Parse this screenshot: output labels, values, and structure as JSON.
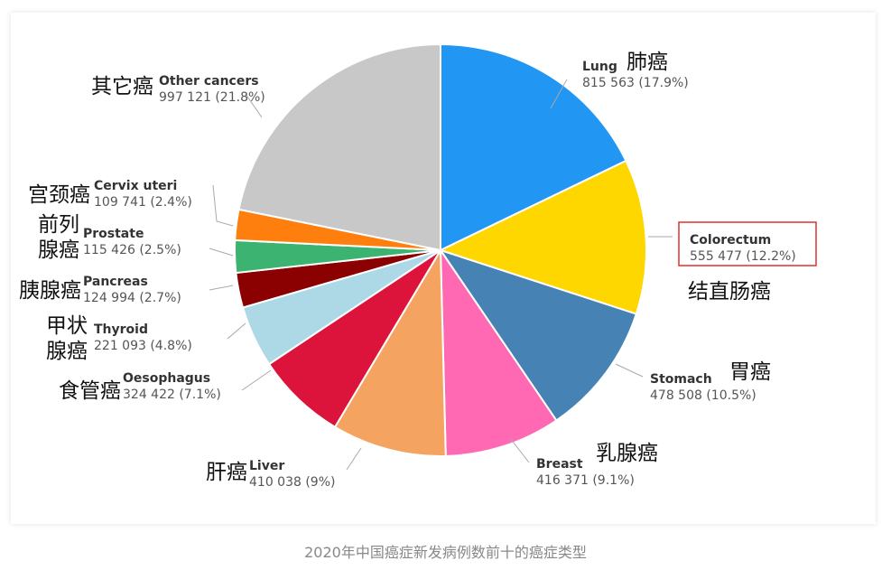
{
  "caption": "2020年中国癌症新发病例数前十的癌症类型",
  "colors": {
    "highlight_box": "#e03030",
    "highlight_text": "#e03030",
    "leader": "#a9a9a9"
  },
  "chart_data": {
    "type": "pie",
    "slices": [
      {
        "label": "Lung",
        "cn": "肺癌",
        "value": 815563,
        "value_text": "815 563 (17.9%)",
        "percent": 17.9,
        "color": "#2196f3"
      },
      {
        "label": "Colorectum",
        "cn": "结直肠癌",
        "value": 555477,
        "value_text": "555 477 (12.2%)",
        "percent": 12.2,
        "color": "#ffd700",
        "highlight": true
      },
      {
        "label": "Stomach",
        "cn": "胃癌",
        "value": 478508,
        "value_text": "478 508 (10.5%)",
        "percent": 10.5,
        "color": "#4682b4"
      },
      {
        "label": "Breast",
        "cn": "乳腺癌",
        "value": 416371,
        "value_text": "416 371 (9.1%)",
        "percent": 9.1,
        "color": "#ff69b4"
      },
      {
        "label": "Liver",
        "cn": "肝癌",
        "value": 410038,
        "value_text": "410 038 (9%)",
        "percent": 9.0,
        "color": "#f4a460"
      },
      {
        "label": "Oesophagus",
        "cn": "食管癌",
        "value": 324422,
        "value_text": "324 422 (7.1%)",
        "percent": 7.1,
        "color": "#dc143c"
      },
      {
        "label": "Thyroid",
        "cn": "甲状\n腺癌",
        "value": 221093,
        "value_text": "221 093 (4.8%)",
        "percent": 4.8,
        "color": "#add8e6"
      },
      {
        "label": "Pancreas",
        "cn": "胰腺癌",
        "value": 124994,
        "value_text": "124 994 (2.7%)",
        "percent": 2.7,
        "color": "#8b0000"
      },
      {
        "label": "Prostate",
        "cn": "前列\n腺癌",
        "value": 115426,
        "value_text": "115 426 (2.5%)",
        "percent": 2.5,
        "color": "#3cb371"
      },
      {
        "label": "Cervix uteri",
        "cn": "宫颈癌",
        "value": 109741,
        "value_text": "109 741 (2.4%)",
        "percent": 2.4,
        "color": "#ff7f0e"
      },
      {
        "label": "Other cancers",
        "cn": "其它癌",
        "value": 997121,
        "value_text": "997 121 (21.8%)",
        "percent": 21.8,
        "color": "#c8c8c8"
      }
    ]
  }
}
